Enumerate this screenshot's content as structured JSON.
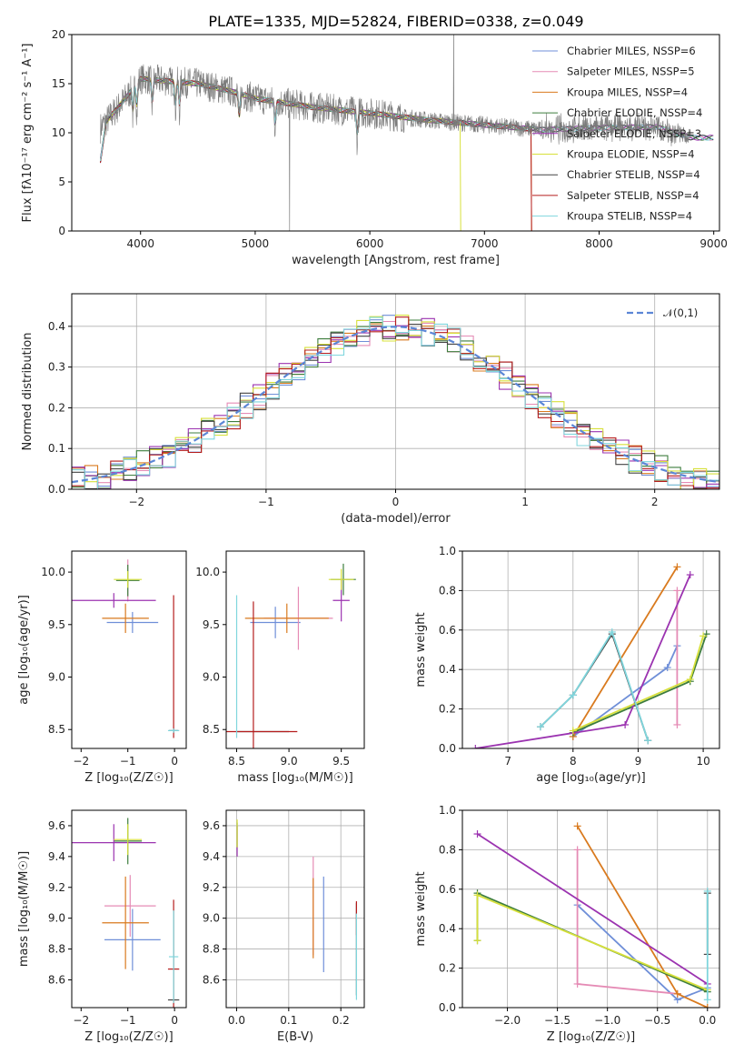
{
  "title": "PLATE=1335, MJD=52824, FIBERID=0338, z=0.049",
  "colors": [
    "#6f8fd8",
    "#e58bb5",
    "#d97a1e",
    "#3d7d3d",
    "#9b33b0",
    "#d7e03b",
    "#444444",
    "#b51d1d",
    "#7fd6dd"
  ],
  "chart_data": [
    {
      "id": "spectrum",
      "type": "line",
      "title": "PLATE=1335, MJD=52824, FIBERID=0338, z=0.049",
      "xlabel": "wavelength [Angstrom, rest frame]",
      "ylabel": "Flux [fλ10⁻¹⁷ erg cm⁻² s⁻¹ A⁻¹]",
      "xlim": [
        3400,
        9050
      ],
      "ylim": [
        0,
        20
      ],
      "xticks": [
        4000,
        5000,
        6000,
        7000,
        8000,
        9000
      ],
      "yticks": [
        0,
        5,
        10,
        15,
        20
      ],
      "legend_position": "upper right",
      "legend": [
        "Chabrier MILES, NSSP=6",
        "Salpeter MILES, NSSP=5",
        "Kroupa MILES, NSSP=4",
        "Chabrier ELODIE, NSSP=4",
        "Salpeter ELODIE, NSSP=3",
        "Kroupa ELODIE, NSSP=4",
        "Chabrier STELIB, NSSP=4",
        "Salpeter STELIB, NSSP=4",
        "Kroupa STELIB, NSSP=4"
      ],
      "observed_continuum": {
        "x": [
          3650,
          3800,
          4000,
          4200,
          4500,
          4800,
          5000,
          5500,
          6000,
          6500,
          7000,
          7500,
          8000,
          8500,
          8800
        ],
        "y": [
          10.5,
          12.5,
          15.5,
          15.3,
          15.0,
          14.2,
          13.5,
          12.6,
          12.0,
          11.3,
          10.8,
          10.3,
          10.5,
          10.6,
          9.5
        ]
      }
    },
    {
      "id": "residuals",
      "type": "step",
      "xlabel": "(data-model)/error",
      "ylabel": "Normed distribution",
      "xlim": [
        -2.5,
        2.5
      ],
      "ylim": [
        0,
        0.48
      ],
      "xticks": [
        -2,
        -1,
        0,
        1,
        2
      ],
      "yticks": [
        0.0,
        0.1,
        0.2,
        0.3,
        0.4
      ],
      "grid": true,
      "reference": {
        "label": "𝒩(0,1)",
        "mu": 0,
        "sigma": 1
      }
    },
    {
      "id": "age_vs_Z",
      "type": "errorbar",
      "xlabel": "Z [log₁₀(Z/Z☉)]",
      "ylabel": "age  [log₁₀(age/yr)]",
      "xlim": [
        -2.2,
        0.25
      ],
      "ylim": [
        8.32,
        10.2
      ],
      "xticks": [
        -2,
        -1,
        0
      ],
      "yticks": [
        8.5,
        9.0,
        9.5,
        10.0
      ],
      "points": [
        {
          "x": -0.9,
          "y": 9.52,
          "xerr": 0.55,
          "yerr": 0.1,
          "c": 0
        },
        {
          "x": -1.0,
          "y": 9.92,
          "xerr": 0.0,
          "yerr": 0.2,
          "c": 1
        },
        {
          "x": -1.05,
          "y": 9.56,
          "xerr": 0.5,
          "yerr": 0.14,
          "c": 2
        },
        {
          "x": -1.0,
          "y": 9.92,
          "xerr": 0.25,
          "yerr": 0.15,
          "c": 3
        },
        {
          "x": -1.3,
          "y": 9.73,
          "xerr": 0.9,
          "yerr": 0.07,
          "c": 4
        },
        {
          "x": -1.0,
          "y": 9.93,
          "xerr": 0.3,
          "yerr": 0.08,
          "c": 5
        },
        {
          "x": -0.02,
          "y": 8.49,
          "xerr": 0.1,
          "yerr": 0.02,
          "c": 6
        },
        {
          "x": -0.02,
          "y": 9.1,
          "xerr": 0.0,
          "yerr": 0.68,
          "c": 7
        },
        {
          "x": -0.02,
          "y": 8.49,
          "xerr": 0.12,
          "yerr": 0.02,
          "c": 8
        }
      ]
    },
    {
      "id": "age_vs_mass",
      "type": "errorbar",
      "xlabel": "mass [log₁₀(M/M☉)]",
      "ylabel": "",
      "xlim": [
        8.4,
        9.72
      ],
      "ylim": [
        8.32,
        10.2
      ],
      "xticks": [
        8.5,
        9.0,
        9.5
      ],
      "yticks": [
        8.5,
        9.0,
        9.5,
        10.0
      ],
      "points": [
        {
          "x": 8.87,
          "y": 9.52,
          "xerr": 0.24,
          "yerr": 0.15,
          "c": 0
        },
        {
          "x": 9.09,
          "y": 9.56,
          "xerr": 0.33,
          "yerr": 0.3,
          "c": 1
        },
        {
          "x": 8.98,
          "y": 9.56,
          "xerr": 0.4,
          "yerr": 0.14,
          "c": 2
        },
        {
          "x": 9.52,
          "y": 9.93,
          "xerr": 0.12,
          "yerr": 0.15,
          "c": 3
        },
        {
          "x": 9.5,
          "y": 9.73,
          "xerr": 0.08,
          "yerr": 0.2,
          "c": 4
        },
        {
          "x": 9.5,
          "y": 9.93,
          "xerr": 0.12,
          "yerr": 0.1,
          "c": 5
        },
        {
          "x": 8.75,
          "y": 8.48,
          "xerr": 0.25,
          "yerr": 0.0,
          "c": 6
        },
        {
          "x": 8.66,
          "y": 8.48,
          "xerr": 0.42,
          "yerr": 1.24,
          "c": 7
        },
        {
          "x": 8.5,
          "y": 9.1,
          "xerr": 0.0,
          "yerr": 0.68,
          "c": 8
        }
      ]
    },
    {
      "id": "mass_weight_vs_age",
      "type": "line",
      "xlabel": "age  [log₁₀(age/yr)]",
      "ylabel": "mass weight",
      "xlim": [
        6.3,
        10.25
      ],
      "ylim": [
        0,
        1.0
      ],
      "xticks": [
        7,
        8,
        9,
        10
      ],
      "yticks": [
        0.0,
        0.2,
        0.4,
        0.6,
        0.8,
        1.0
      ],
      "grid": true,
      "series": [
        {
          "c": 0,
          "x": [
            8.0,
            9.45,
            9.6
          ],
          "y": [
            0.06,
            0.41,
            0.52
          ]
        },
        {
          "c": 1,
          "x": [
            9.6,
            9.6
          ],
          "y": [
            0.12,
            0.8
          ]
        },
        {
          "c": 2,
          "x": [
            8.0,
            9.6
          ],
          "y": [
            0.06,
            0.92
          ]
        },
        {
          "c": 3,
          "x": [
            8.0,
            9.8,
            10.05
          ],
          "y": [
            0.08,
            0.34,
            0.58
          ]
        },
        {
          "c": 4,
          "x": [
            6.5,
            8.8,
            9.8
          ],
          "y": [
            0.0,
            0.12,
            0.88
          ]
        },
        {
          "c": 5,
          "x": [
            8.0,
            9.8,
            10.0
          ],
          "y": [
            0.09,
            0.35,
            0.57
          ]
        },
        {
          "c": 6,
          "x": [
            7.5,
            8.0,
            8.6,
            9.15
          ],
          "y": [
            0.11,
            0.27,
            0.58,
            0.04
          ]
        },
        {
          "c": 8,
          "x": [
            7.5,
            8.0,
            8.6,
            9.15
          ],
          "y": [
            0.11,
            0.27,
            0.59,
            0.04
          ]
        }
      ]
    },
    {
      "id": "mass_vs_Z",
      "type": "errorbar",
      "xlabel": "Z [log₁₀(Z/Z☉)]",
      "ylabel": "mass [log₁₀(M/M☉)]",
      "xlim": [
        -2.2,
        0.25
      ],
      "ylim": [
        8.42,
        9.7
      ],
      "xticks": [
        -2,
        -1,
        0
      ],
      "yticks": [
        8.6,
        8.8,
        9.0,
        9.2,
        9.4,
        9.6
      ],
      "points": [
        {
          "x": -0.9,
          "y": 8.86,
          "xerr": 0.6,
          "yerr": 0.2,
          "c": 0
        },
        {
          "x": -0.95,
          "y": 9.08,
          "xerr": 0.55,
          "yerr": 0.2,
          "c": 1
        },
        {
          "x": -1.05,
          "y": 8.97,
          "xerr": 0.5,
          "yerr": 0.3,
          "c": 2
        },
        {
          "x": -1.0,
          "y": 9.5,
          "xerr": 0.3,
          "yerr": 0.15,
          "c": 3
        },
        {
          "x": -1.3,
          "y": 9.49,
          "xerr": 0.9,
          "yerr": 0.12,
          "c": 4
        },
        {
          "x": -1.0,
          "y": 9.51,
          "xerr": 0.3,
          "yerr": 0.1,
          "c": 5
        },
        {
          "x": -0.02,
          "y": 8.47,
          "xerr": 0.12,
          "yerr": 0.0,
          "c": 6
        },
        {
          "x": -0.02,
          "y": 8.67,
          "xerr": 0.12,
          "yerr": 0.45,
          "c": 7
        },
        {
          "x": -0.02,
          "y": 8.75,
          "xerr": 0.1,
          "yerr": 0.3,
          "c": 8
        }
      ]
    },
    {
      "id": "mass_vs_ebv",
      "type": "errorbar",
      "xlabel": "E(B-V)",
      "ylabel": "",
      "xlim": [
        -0.02,
        0.245
      ],
      "ylim": [
        8.42,
        9.7
      ],
      "xticks": [
        0.0,
        0.1,
        0.2
      ],
      "yticks": [
        8.6,
        8.8,
        9.0,
        9.2,
        9.4,
        9.6
      ],
      "grid": true,
      "points": [
        {
          "x": 0.167,
          "y": 8.96,
          "yerr": 0.31,
          "c": 0
        },
        {
          "x": 0.147,
          "y": 9.08,
          "yerr": 0.32,
          "c": 1
        },
        {
          "x": 0.147,
          "y": 9.0,
          "yerr": 0.26,
          "c": 2
        },
        {
          "x": 0.001,
          "y": 9.54,
          "yerr": 0.08,
          "c": 3
        },
        {
          "x": 0.001,
          "y": 9.5,
          "yerr": 0.1,
          "c": 4
        },
        {
          "x": 0.001,
          "y": 9.55,
          "yerr": 0.09,
          "c": 5
        },
        {
          "x": 0.23,
          "y": 8.8,
          "yerr": 0.3,
          "c": 6
        },
        {
          "x": 0.23,
          "y": 9.0,
          "yerr": 0.11,
          "c": 7
        },
        {
          "x": 0.23,
          "y": 8.75,
          "yerr": 0.28,
          "c": 8
        }
      ]
    },
    {
      "id": "mass_weight_vs_Z",
      "type": "line",
      "xlabel": "Z [log₁₀(Z/Z☉)]",
      "ylabel": "mass weight",
      "xlim": [
        -2.45,
        0.12
      ],
      "ylim": [
        0,
        1.0
      ],
      "xticks": [
        -2.0,
        -1.5,
        -1.0,
        -0.5,
        0.0
      ],
      "yticks": [
        0.0,
        0.2,
        0.4,
        0.6,
        0.8,
        1.0
      ],
      "grid": true,
      "series": [
        {
          "c": 0,
          "x": [
            -1.3,
            -0.3,
            0.0
          ],
          "y": [
            0.52,
            0.04,
            0.1
          ]
        },
        {
          "c": 1,
          "x": [
            -1.3,
            -1.3,
            -0.3
          ],
          "y": [
            0.8,
            0.12,
            0.07
          ]
        },
        {
          "c": 2,
          "x": [
            -1.3,
            -0.3,
            0.0
          ],
          "y": [
            0.92,
            0.07,
            0.0
          ]
        },
        {
          "c": 3,
          "x": [
            -2.3,
            -2.3,
            0.0
          ],
          "y": [
            0.34,
            0.58,
            0.08
          ]
        },
        {
          "c": 4,
          "x": [
            -2.3,
            0.0
          ],
          "y": [
            0.88,
            0.12
          ]
        },
        {
          "c": 5,
          "x": [
            -2.3,
            -2.3,
            0.0
          ],
          "y": [
            0.34,
            0.57,
            0.09
          ]
        },
        {
          "c": 6,
          "x": [
            0.0,
            0.0
          ],
          "y": [
            0.27,
            0.58
          ]
        },
        {
          "c": 8,
          "x": [
            0.0,
            0.0
          ],
          "y": [
            0.04,
            0.59
          ]
        }
      ]
    }
  ]
}
